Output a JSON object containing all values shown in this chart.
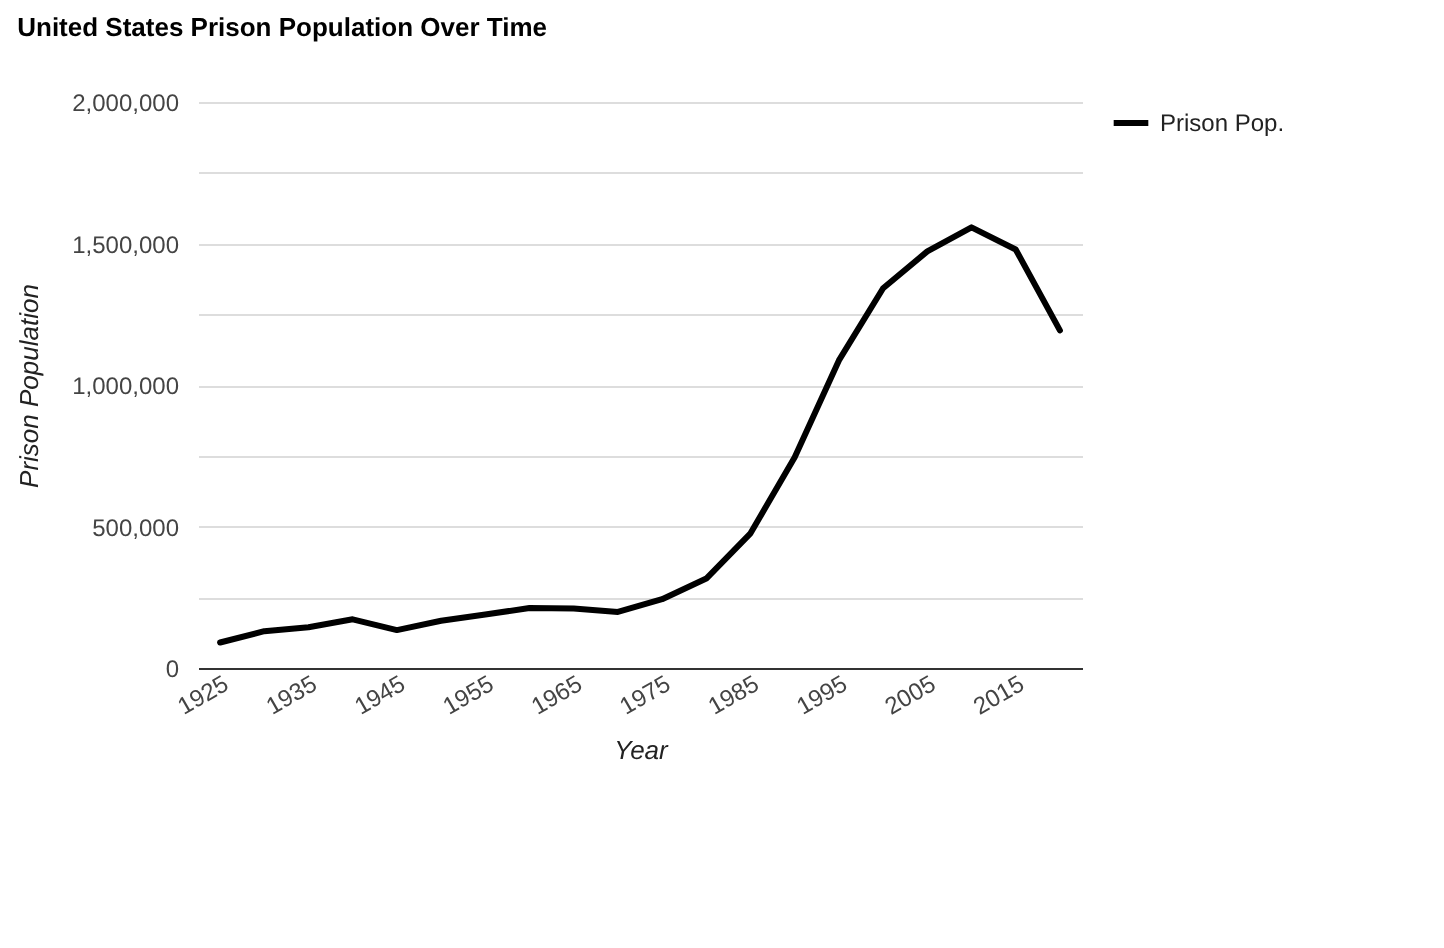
{
  "chart_data": {
    "type": "line",
    "title": "United States Prison Population Over Time",
    "xlabel": "Year",
    "ylabel": "Prison Population",
    "categories": [
      "1925",
      null,
      "1935",
      null,
      "1945",
      null,
      "1955",
      null,
      "1965",
      null,
      "1975",
      null,
      "1985",
      null,
      "1995",
      null,
      "2005",
      null,
      "2015",
      null
    ],
    "series": [
      {
        "name": "Prison Pop.",
        "color": "#000000",
        "values": [
          90000,
          130000,
          144000,
          172000,
          134000,
          167000,
          189000,
          212000,
          210000,
          198000,
          243000,
          316000,
          476000,
          745000,
          1087000,
          1342000,
          1472000,
          1557000,
          1479000,
          1193000
        ]
      }
    ],
    "ylim": [
      0,
      2000000
    ],
    "yticks": [
      0,
      {
        "value": 250000,
        "label": null
      },
      {
        "value": 500000,
        "label": "500,000"
      },
      {
        "value": 750000,
        "label": null
      },
      {
        "value": 1000000,
        "label": "1,000,000"
      },
      {
        "value": 1250000,
        "label": null
      },
      {
        "value": 1500000,
        "label": "1,500,000"
      },
      {
        "value": 1750000,
        "label": null
      },
      {
        "value": 2000000,
        "label": "2,000,000"
      }
    ],
    "grid": "y",
    "legend": "top right",
    "marker": "none",
    "line_style": "solid"
  }
}
